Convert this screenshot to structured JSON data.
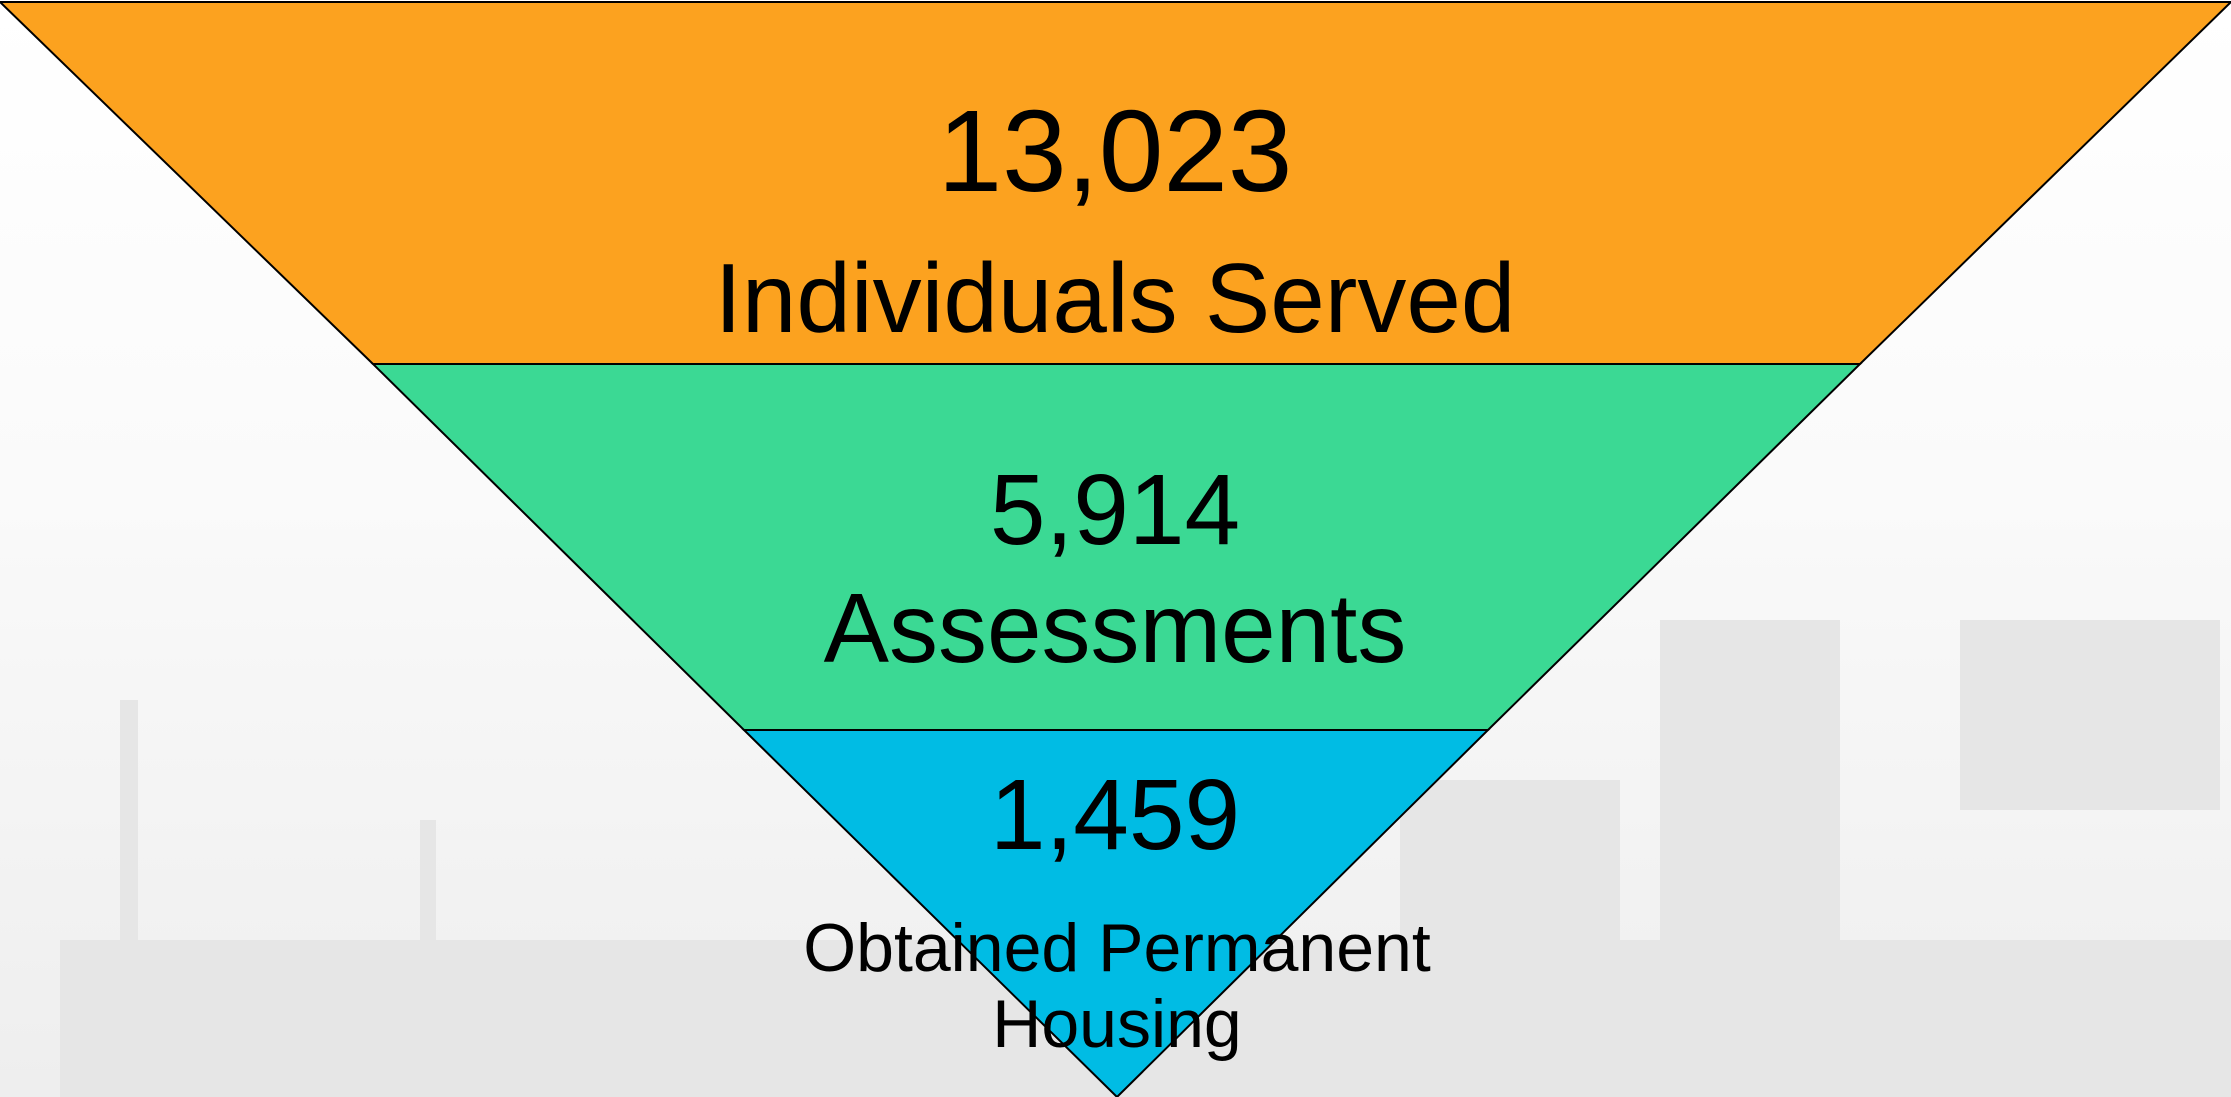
{
  "funnel": {
    "stages": [
      {
        "value": "13,023",
        "label": "Individuals Served"
      },
      {
        "value": "5,914",
        "label": "Assessments"
      },
      {
        "value": "1,459",
        "label": "Obtained Permanent Housing"
      }
    ]
  }
}
